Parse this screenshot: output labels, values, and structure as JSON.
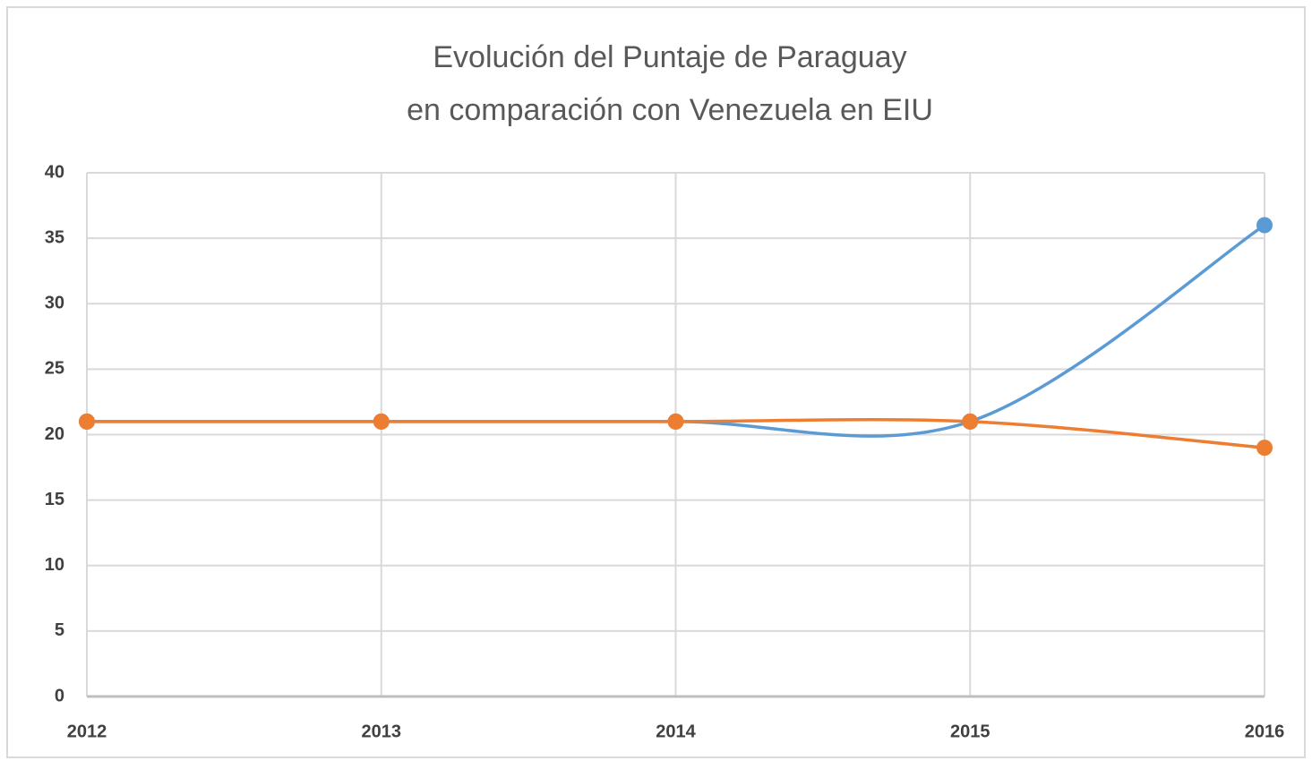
{
  "chart_data": {
    "type": "line",
    "title": [
      "Evolución del Puntaje de Paraguay",
      "en comparación con Venezuela en EIU"
    ],
    "categories": [
      "2012",
      "2013",
      "2014",
      "2015",
      "2016"
    ],
    "series": [
      {
        "color": "#5b9bd5",
        "values": [
          21,
          21,
          21,
          21,
          36
        ]
      },
      {
        "color": "#ed7d31",
        "values": [
          21,
          21,
          21,
          21,
          19
        ]
      }
    ],
    "ylim": [
      0,
      40
    ],
    "yticks": [
      0,
      5,
      10,
      15,
      20,
      25,
      30,
      35,
      40
    ],
    "grid": true,
    "smooth": true
  }
}
